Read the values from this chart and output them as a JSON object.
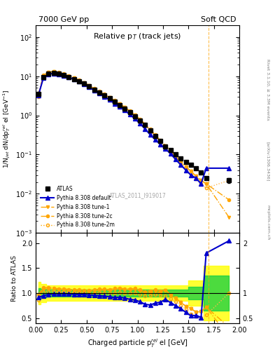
{
  "title_left": "7000 GeV pp",
  "title_right": "Soft QCD",
  "plot_title": "Relative p$_{T}$ (track jets)",
  "ylabel_main": "1/N$_{jet}$ dN/dp$^{rel}_{T}$ el [GeV$^{-1}$]",
  "ylabel_ratio": "Ratio to ATLAS",
  "xlabel": "Charged particle p$^{rel}_{T}$ el [GeV]",
  "right_label": "Rivet 3.1.10, ≥ 3.3M events",
  "arxiv_label": "[arXiv:1306.3436]",
  "mcplots_label": "mcplots.cern.ch",
  "atlas_id": "ATLAS_2011_I919017",
  "vline_x": 1.7,
  "x_data": [
    0.025,
    0.075,
    0.125,
    0.175,
    0.225,
    0.275,
    0.325,
    0.375,
    0.425,
    0.475,
    0.525,
    0.575,
    0.625,
    0.675,
    0.725,
    0.775,
    0.825,
    0.875,
    0.925,
    0.975,
    1.025,
    1.075,
    1.125,
    1.175,
    1.225,
    1.275,
    1.325,
    1.375,
    1.425,
    1.475,
    1.525,
    1.575,
    1.625,
    1.675,
    1.9
  ],
  "atlas_y": [
    3.5,
    9.5,
    11.5,
    12.0,
    11.5,
    10.5,
    9.5,
    8.5,
    7.5,
    6.5,
    5.5,
    4.5,
    3.8,
    3.2,
    2.7,
    2.2,
    1.8,
    1.5,
    1.2,
    0.95,
    0.75,
    0.58,
    0.42,
    0.3,
    0.22,
    0.16,
    0.13,
    0.1,
    0.08,
    0.065,
    0.055,
    0.045,
    0.035,
    0.025,
    0.022
  ],
  "atlas_yerr": [
    0.4,
    0.5,
    0.5,
    0.5,
    0.5,
    0.4,
    0.4,
    0.35,
    0.3,
    0.25,
    0.22,
    0.18,
    0.15,
    0.12,
    0.1,
    0.08,
    0.07,
    0.06,
    0.05,
    0.04,
    0.035,
    0.028,
    0.022,
    0.016,
    0.012,
    0.009,
    0.007,
    0.006,
    0.005,
    0.004,
    0.004,
    0.003,
    0.003,
    0.002,
    0.003
  ],
  "pythia_default_y": [
    3.2,
    9.0,
    11.2,
    11.8,
    11.3,
    10.4,
    9.3,
    8.3,
    7.3,
    6.3,
    5.3,
    4.3,
    3.6,
    3.0,
    2.5,
    2.0,
    1.65,
    1.35,
    1.05,
    0.82,
    0.62,
    0.45,
    0.32,
    0.24,
    0.18,
    0.14,
    0.105,
    0.075,
    0.055,
    0.04,
    0.03,
    0.025,
    0.018,
    0.045,
    0.045
  ],
  "pythia_tune1_y": [
    3.3,
    10.2,
    12.5,
    13.0,
    12.3,
    11.2,
    10.0,
    8.9,
    7.8,
    6.7,
    5.7,
    4.7,
    4.0,
    3.4,
    2.85,
    2.35,
    1.95,
    1.6,
    1.28,
    1.02,
    0.78,
    0.58,
    0.42,
    0.31,
    0.22,
    0.17,
    0.125,
    0.09,
    0.065,
    0.048,
    0.038,
    0.028,
    0.022,
    0.018,
    0.0025
  ],
  "pythia_tune2c_y": [
    3.4,
    10.5,
    12.8,
    13.2,
    12.5,
    11.4,
    10.2,
    9.1,
    8.0,
    6.9,
    5.8,
    4.8,
    4.1,
    3.45,
    2.9,
    2.4,
    1.98,
    1.63,
    1.3,
    1.04,
    0.8,
    0.6,
    0.44,
    0.32,
    0.23,
    0.17,
    0.125,
    0.09,
    0.065,
    0.048,
    0.038,
    0.028,
    0.022,
    0.018,
    0.007
  ],
  "pythia_tune2m_y": [
    3.0,
    9.8,
    12.0,
    12.5,
    11.8,
    10.8,
    9.7,
    8.6,
    7.6,
    6.5,
    5.5,
    4.5,
    3.85,
    3.2,
    2.7,
    2.2,
    1.82,
    1.5,
    1.2,
    0.95,
    0.73,
    0.55,
    0.4,
    0.29,
    0.21,
    0.15,
    0.115,
    0.083,
    0.06,
    0.044,
    0.032,
    0.024,
    0.018,
    0.014,
    0.022
  ],
  "green_band_lo": [
    0.9,
    0.92,
    0.93,
    0.93,
    0.93,
    0.93,
    0.93,
    0.93,
    0.93,
    0.93,
    0.93,
    0.93,
    0.93,
    0.93,
    0.93,
    0.93,
    0.93,
    0.93,
    0.93,
    0.93,
    0.93,
    0.93,
    0.93,
    0.93,
    0.93,
    0.93,
    0.93,
    0.93,
    0.93,
    0.93,
    0.88,
    0.88,
    0.88,
    0.65,
    0.65
  ],
  "green_band_hi": [
    1.1,
    1.08,
    1.07,
    1.07,
    1.07,
    1.07,
    1.07,
    1.07,
    1.07,
    1.07,
    1.07,
    1.07,
    1.07,
    1.07,
    1.07,
    1.07,
    1.07,
    1.07,
    1.07,
    1.07,
    1.07,
    1.07,
    1.07,
    1.07,
    1.07,
    1.07,
    1.07,
    1.07,
    1.07,
    1.07,
    1.12,
    1.12,
    1.12,
    1.35,
    1.35
  ],
  "yellow_band_lo": [
    0.78,
    0.82,
    0.84,
    0.85,
    0.85,
    0.85,
    0.85,
    0.85,
    0.85,
    0.85,
    0.85,
    0.85,
    0.85,
    0.85,
    0.85,
    0.85,
    0.85,
    0.85,
    0.85,
    0.85,
    0.85,
    0.85,
    0.85,
    0.85,
    0.85,
    0.85,
    0.85,
    0.85,
    0.85,
    0.85,
    0.75,
    0.75,
    0.75,
    0.45,
    0.45
  ],
  "yellow_band_hi": [
    1.22,
    1.18,
    1.16,
    1.15,
    1.15,
    1.15,
    1.15,
    1.15,
    1.15,
    1.15,
    1.15,
    1.15,
    1.15,
    1.15,
    1.15,
    1.15,
    1.15,
    1.15,
    1.15,
    1.15,
    1.15,
    1.15,
    1.15,
    1.15,
    1.15,
    1.15,
    1.15,
    1.15,
    1.15,
    1.15,
    1.25,
    1.25,
    1.25,
    1.55,
    1.55
  ],
  "color_atlas": "#000000",
  "color_default": "#0000CC",
  "color_tune": "#FFA500",
  "color_green": "#00CC00",
  "color_yellow": "#FFFF00",
  "xlim": [
    0,
    2.0
  ],
  "ylim_main": [
    0.001,
    200
  ],
  "ylim_ratio": [
    0.4,
    2.2
  ]
}
